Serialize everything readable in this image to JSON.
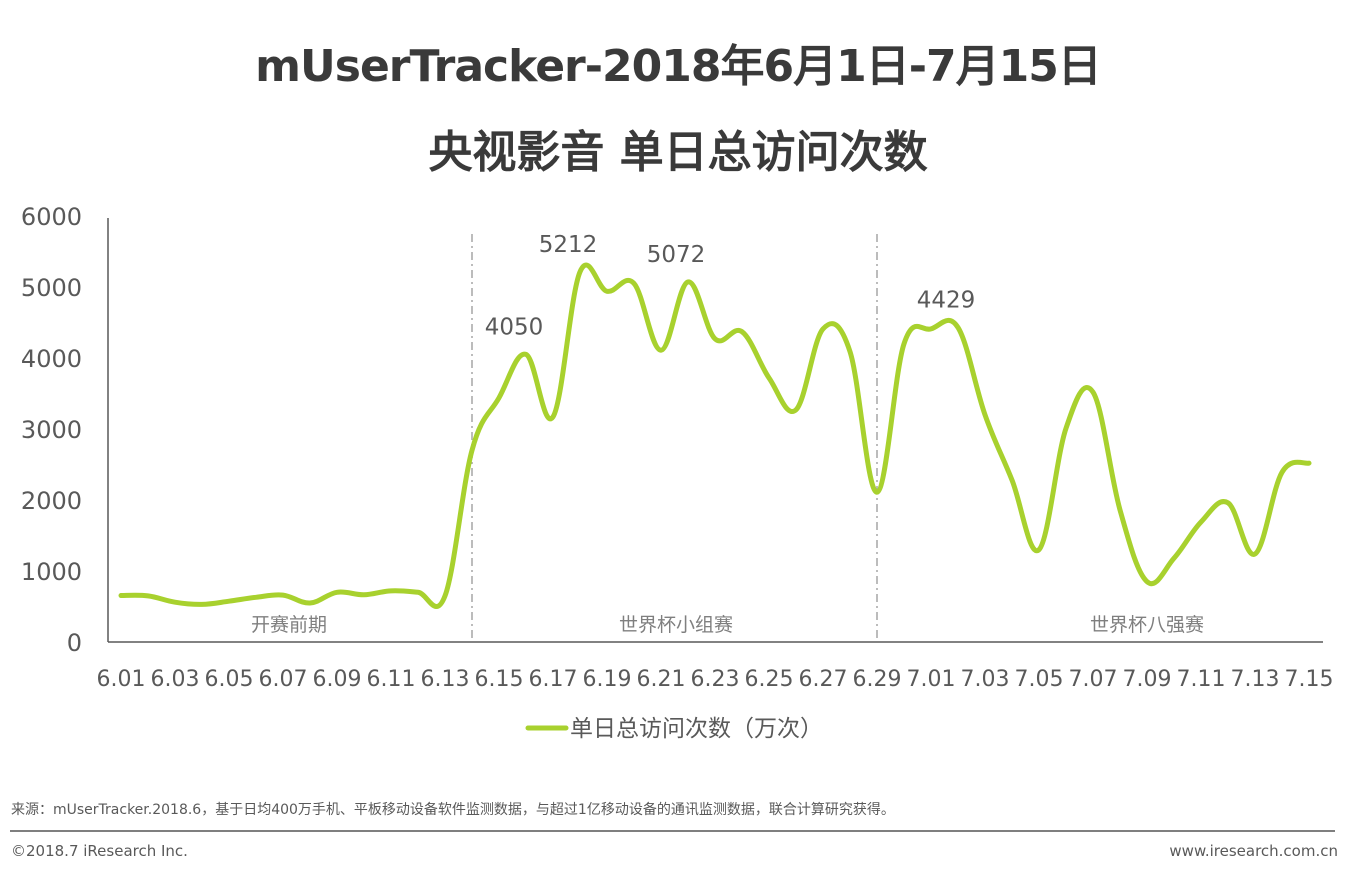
{
  "title": {
    "line1": "mUserTracker-2018年6月1日-7月15日",
    "line2": "央视影音 单日总访问次数"
  },
  "colors": {
    "series": "#a8d12e",
    "axis": "#595959",
    "divider": "#a6a6a6",
    "text": "#595959"
  },
  "chart_data": {
    "type": "line",
    "title": "mUserTracker-2018年6月1日-7月15日 央视影音 单日总访问次数",
    "xlabel": "",
    "ylabel": "",
    "ylim": [
      0,
      6000
    ],
    "yticks": [
      0,
      1000,
      2000,
      3000,
      4000,
      5000,
      6000
    ],
    "grid": false,
    "legend_position": "bottom",
    "x": [
      "6.01",
      "6.02",
      "6.03",
      "6.04",
      "6.05",
      "6.06",
      "6.07",
      "6.08",
      "6.09",
      "6.10",
      "6.11",
      "6.12",
      "6.13",
      "6.14",
      "6.15",
      "6.16",
      "6.17",
      "6.18",
      "6.19",
      "6.20",
      "6.21",
      "6.22",
      "6.23",
      "6.24",
      "6.25",
      "6.26",
      "6.27",
      "6.28",
      "6.29",
      "6.30",
      "7.01",
      "7.02",
      "7.03",
      "7.04",
      "7.05",
      "7.06",
      "7.07",
      "7.08",
      "7.09",
      "7.10",
      "7.11",
      "7.12",
      "7.13",
      "7.14",
      "7.15"
    ],
    "x_tick_labels": [
      "6.01",
      "6.03",
      "6.05",
      "6.07",
      "6.09",
      "6.11",
      "6.13",
      "6.15",
      "6.17",
      "6.19",
      "6.21",
      "6.23",
      "6.25",
      "6.27",
      "6.29",
      "7.01",
      "7.03",
      "7.05",
      "7.07",
      "7.09",
      "7.11",
      "7.13",
      "7.15"
    ],
    "series": [
      {
        "name": "单日总访问次数（万次）",
        "values": [
          655,
          650,
          560,
          530,
          575,
          630,
          660,
          550,
          700,
          665,
          720,
          700,
          650,
          2700,
          3440,
          4050,
          3170,
          5212,
          4940,
          5050,
          4110,
          5072,
          4270,
          4370,
          3720,
          3270,
          4410,
          4090,
          2110,
          4200,
          4410,
          4429,
          3200,
          2280,
          1300,
          3010,
          3520,
          1860,
          850,
          1180,
          1690,
          1960,
          1240,
          2390,
          2520
        ]
      }
    ],
    "annotations": [
      {
        "x": "6.16",
        "label": "4050"
      },
      {
        "x": "6.18",
        "label": "5212"
      },
      {
        "x": "6.22",
        "label": "5072"
      },
      {
        "x": "7.02",
        "label": "4429"
      }
    ],
    "phases": [
      {
        "label": "开赛前期",
        "from": "6.01",
        "to": "6.14"
      },
      {
        "label": "世界杯小组赛",
        "from": "6.14",
        "to": "6.29"
      },
      {
        "label": "世界杯八强赛",
        "from": "6.29",
        "to": "7.15"
      }
    ],
    "dividers": [
      "6.14",
      "6.29"
    ]
  },
  "legend": {
    "label": "单日总访问次数（万次）"
  },
  "footer": {
    "source": "来源：mUserTracker.2018.6，基于日均400万手机、平板移动设备软件监测数据，与超过1亿移动设备的通讯监测数据，联合计算研究获得。",
    "copyright": "©2018.7 iResearch Inc.",
    "website": "www.iresearch.com.cn"
  }
}
